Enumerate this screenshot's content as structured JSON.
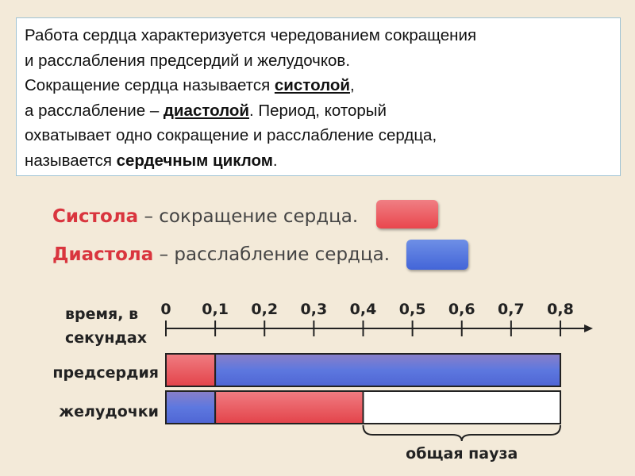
{
  "intro": {
    "line1": "Работа сердца характеризуется чередованием сокращения",
    "line2": "и расслабления предсердий и желудочков.",
    "line3_pre": "Сокращение сердца называется ",
    "line3_term": "систолой",
    "line3_post": ",",
    "line4_pre": "а расслабление – ",
    "line4_term": "диастолой",
    "line4_post": ". Период, который",
    "line5": "охватывает одно сокращение и расслабление сердца,",
    "line6_pre": "называется ",
    "line6_term": "сердечным циклом",
    "line6_post": "."
  },
  "legend": {
    "systole_term": "Систола",
    "systole_rest": " – сокращение сердца.",
    "diastole_term": "Диастола",
    "diastole_rest": " – расслабление сердца.",
    "systole_color": "#ea5a60",
    "diastole_color": "#4f6fdc"
  },
  "chart_data": {
    "type": "timeline",
    "axis_label_line1": "время, в",
    "axis_label_line2": "секундах",
    "ticks": [
      "0",
      "0,1",
      "0,2",
      "0,3",
      "0,4",
      "0,5",
      "0,6",
      "0,7",
      "0,8"
    ],
    "xlim": [
      0,
      0.8
    ],
    "rows": [
      {
        "name": "предсердия",
        "segments": [
          {
            "from": 0,
            "to": 0.1,
            "phase": "systole"
          },
          {
            "from": 0.1,
            "to": 0.8,
            "phase": "diastole"
          }
        ]
      },
      {
        "name": "желудочки",
        "segments": [
          {
            "from": 0,
            "to": 0.1,
            "phase": "diastole"
          },
          {
            "from": 0.1,
            "to": 0.4,
            "phase": "systole"
          },
          {
            "from": 0.4,
            "to": 0.8,
            "phase": "pause"
          }
        ]
      }
    ],
    "brace": {
      "from": 0.4,
      "to": 0.8,
      "label": "общая пауза"
    },
    "colors": {
      "systole": "#ea5a60",
      "diastole": "#4f6fdc",
      "pause": "#ffffff"
    }
  }
}
